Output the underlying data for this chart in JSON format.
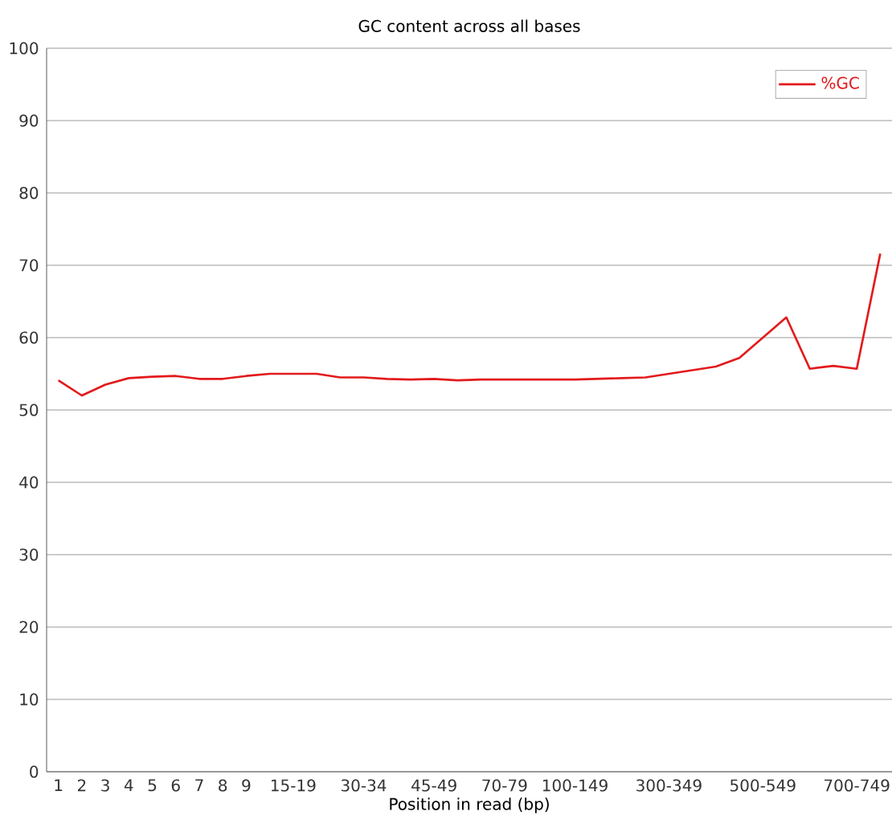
{
  "chart_data": {
    "type": "line",
    "title": "GC content across all bases",
    "xlabel": "Position in read (bp)",
    "categories": [
      "1",
      "2",
      "3",
      "4",
      "5",
      "6",
      "7",
      "8",
      "9",
      null,
      "15-19",
      null,
      null,
      "30-34",
      null,
      null,
      "45-49",
      null,
      null,
      "70-79",
      null,
      null,
      "100-149",
      null,
      null,
      null,
      "300-349",
      null,
      null,
      null,
      "500-549",
      null,
      null,
      null,
      "700-749",
      null
    ],
    "series": [
      {
        "name": "%GC",
        "color": "#e31a1c",
        "values": [
          54.1,
          52.0,
          53.5,
          54.4,
          54.6,
          54.7,
          54.3,
          54.3,
          54.7,
          55.0,
          55.0,
          55.0,
          54.5,
          54.5,
          54.3,
          54.2,
          54.3,
          54.1,
          54.2,
          54.2,
          54.2,
          54.2,
          54.2,
          54.3,
          54.4,
          54.5,
          55.0,
          55.5,
          56.0,
          57.2,
          60.0,
          62.8,
          55.7,
          56.1,
          55.7,
          71.6
        ]
      }
    ],
    "ylim": [
      0,
      100
    ],
    "yticks": [
      0,
      10,
      20,
      30,
      40,
      50,
      60,
      70,
      80,
      90,
      100
    ],
    "grid": "y",
    "legend": "top right",
    "marker": "none",
    "line_style": "solid"
  }
}
